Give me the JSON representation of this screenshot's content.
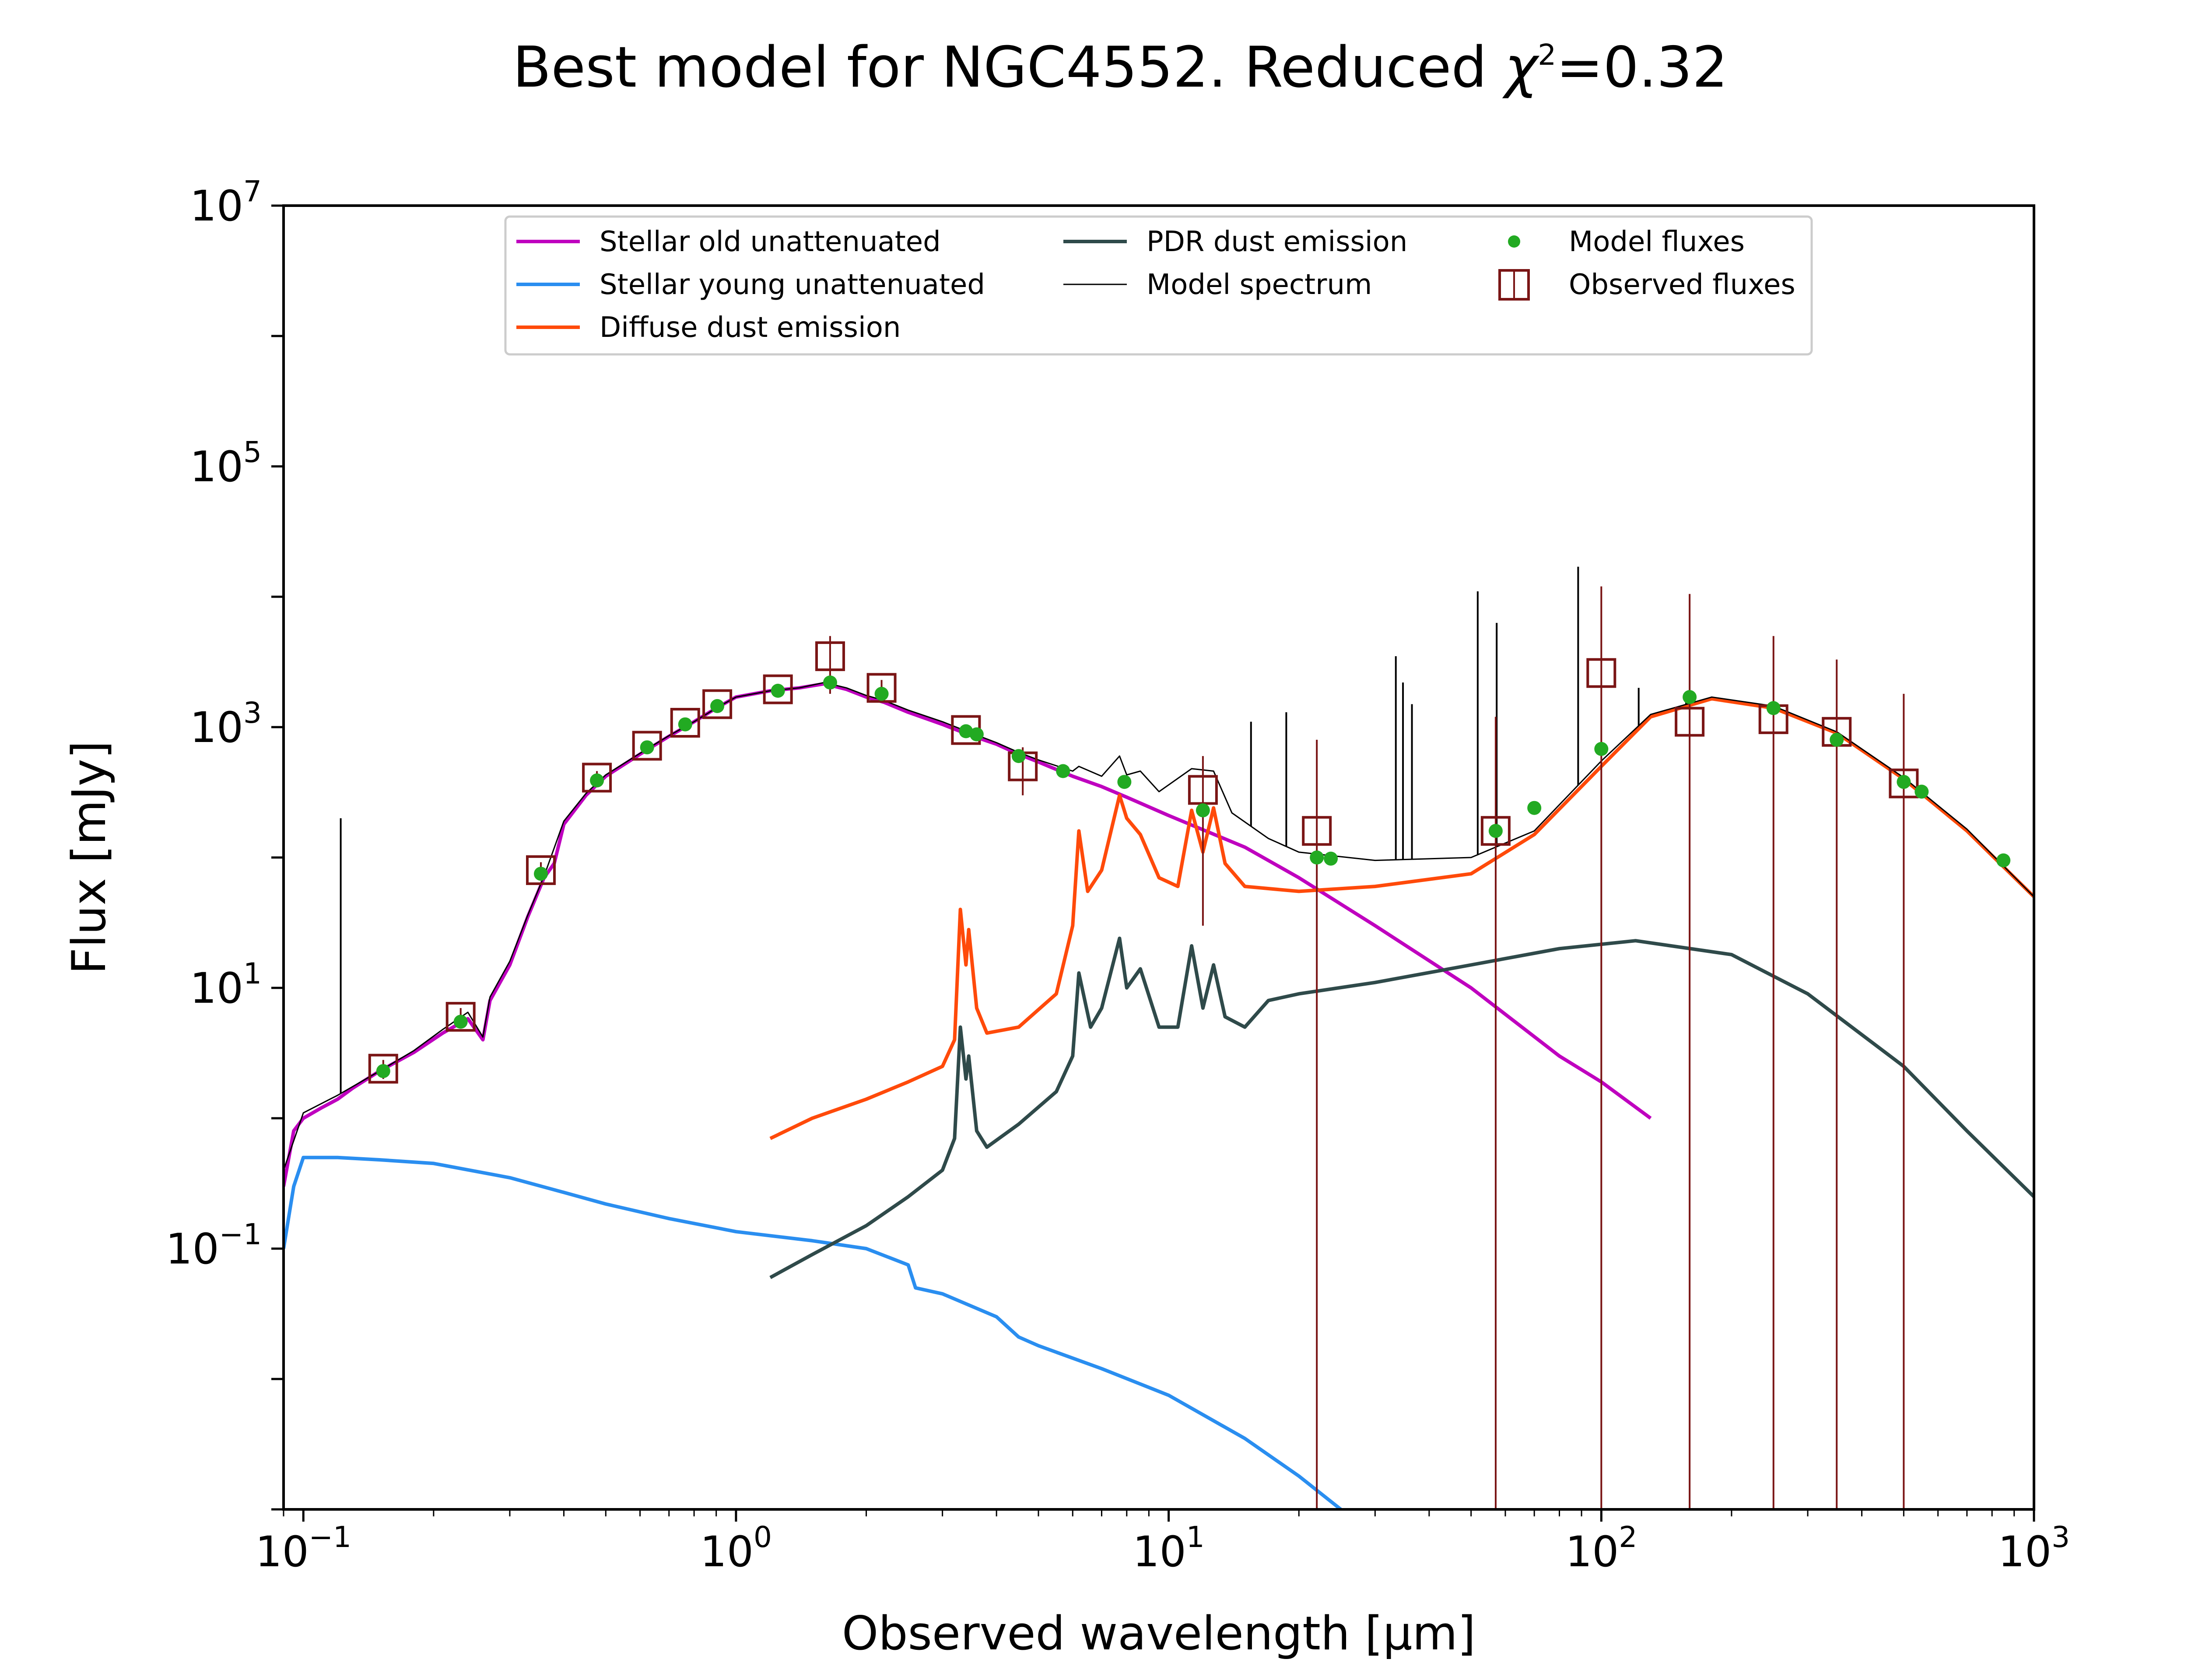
{
  "chart_data": {
    "type": "line",
    "title_prefix": "Best model for NGC4552. Reduced ",
    "title_chi": "χ",
    "title_sup": "2",
    "title_suffix": "=0.32",
    "xlabel": "Observed wavelength [μm]",
    "ylabel": "Flux [mJy]",
    "xscale": "log",
    "yscale": "log",
    "xlim": [
      0.09,
      1000
    ],
    "ylim": [
      0.001,
      10000000
    ],
    "legend_position": "top",
    "x_ticks": [
      {
        "value": 0.1,
        "base": "10",
        "exp": "−1"
      },
      {
        "value": 1,
        "base": "10",
        "exp": "0"
      },
      {
        "value": 10,
        "base": "10",
        "exp": "1"
      },
      {
        "value": 100,
        "base": "10",
        "exp": "2"
      },
      {
        "value": 1000,
        "base": "10",
        "exp": "3"
      }
    ],
    "y_ticks": [
      {
        "value": 0.1,
        "base": "10",
        "exp": "−1"
      },
      {
        "value": 10,
        "base": "10",
        "exp": "1"
      },
      {
        "value": 1000,
        "base": "10",
        "exp": "3"
      },
      {
        "value": 100000,
        "base": "10",
        "exp": "5"
      },
      {
        "value": 10000000,
        "base": "10",
        "exp": "7"
      }
    ],
    "series": [
      {
        "name": "Stellar old unattenuated",
        "color": "#bf00bf",
        "points": [
          [
            0.09,
            0.3
          ],
          [
            0.095,
            0.8
          ],
          [
            0.1,
            1.0
          ],
          [
            0.11,
            1.2
          ],
          [
            0.12,
            1.4
          ],
          [
            0.13,
            1.7
          ],
          [
            0.15,
            2.3
          ],
          [
            0.18,
            3.2
          ],
          [
            0.21,
            4.5
          ],
          [
            0.24,
            5.8
          ],
          [
            0.26,
            4.0
          ],
          [
            0.27,
            8.0
          ],
          [
            0.3,
            15
          ],
          [
            0.33,
            35
          ],
          [
            0.36,
            70
          ],
          [
            0.38,
            90
          ],
          [
            0.4,
            180
          ],
          [
            0.45,
            300
          ],
          [
            0.5,
            420
          ],
          [
            0.6,
            620
          ],
          [
            0.7,
            850
          ],
          [
            0.8,
            1100
          ],
          [
            0.9,
            1400
          ],
          [
            1.0,
            1700
          ],
          [
            1.2,
            1900
          ],
          [
            1.4,
            2000
          ],
          [
            1.6,
            2150
          ],
          [
            1.8,
            1950
          ],
          [
            2.0,
            1700
          ],
          [
            2.2,
            1550
          ],
          [
            2.5,
            1300
          ],
          [
            3.0,
            1050
          ],
          [
            3.5,
            860
          ],
          [
            4.0,
            740
          ],
          [
            4.5,
            620
          ],
          [
            5.0,
            540
          ],
          [
            6.0,
            420
          ],
          [
            7.0,
            350
          ],
          [
            8.0,
            290
          ],
          [
            10,
            210
          ],
          [
            15,
            120
          ],
          [
            20,
            70
          ],
          [
            30,
            30
          ],
          [
            50,
            10
          ],
          [
            80,
            3.0
          ],
          [
            100,
            1.9
          ],
          [
            130,
            1.0
          ]
        ]
      },
      {
        "name": "Stellar young unattenuated",
        "color": "#2a8ef0",
        "points": [
          [
            0.09,
            0.1
          ],
          [
            0.095,
            0.3
          ],
          [
            0.1,
            0.5
          ],
          [
            0.12,
            0.5
          ],
          [
            0.15,
            0.48
          ],
          [
            0.2,
            0.45
          ],
          [
            0.3,
            0.35
          ],
          [
            0.4,
            0.27
          ],
          [
            0.5,
            0.22
          ],
          [
            0.7,
            0.17
          ],
          [
            1.0,
            0.135
          ],
          [
            1.5,
            0.115
          ],
          [
            2.0,
            0.1
          ],
          [
            2.5,
            0.075
          ],
          [
            2.6,
            0.05
          ],
          [
            3.0,
            0.045
          ],
          [
            4.0,
            0.03
          ],
          [
            4.5,
            0.021
          ],
          [
            5.0,
            0.018
          ],
          [
            7.0,
            0.012
          ],
          [
            10,
            0.0075
          ],
          [
            15,
            0.0035
          ],
          [
            20,
            0.0018
          ],
          [
            25,
            0.001
          ]
        ]
      },
      {
        "name": "Diffuse dust emission",
        "color": "#ff4a0a",
        "points": [
          [
            1.2,
            0.7
          ],
          [
            1.5,
            1.0
          ],
          [
            2.0,
            1.4
          ],
          [
            2.5,
            1.9
          ],
          [
            3.0,
            2.5
          ],
          [
            3.2,
            4
          ],
          [
            3.3,
            40
          ],
          [
            3.4,
            15
          ],
          [
            3.45,
            28
          ],
          [
            3.6,
            7
          ],
          [
            3.8,
            4.5
          ],
          [
            4.5,
            5
          ],
          [
            5.5,
            9
          ],
          [
            6.0,
            30
          ],
          [
            6.2,
            160
          ],
          [
            6.5,
            55
          ],
          [
            7.0,
            80
          ],
          [
            7.7,
            300
          ],
          [
            8.0,
            200
          ],
          [
            8.6,
            150
          ],
          [
            9.5,
            70
          ],
          [
            10.5,
            60
          ],
          [
            11.3,
            230
          ],
          [
            12.0,
            110
          ],
          [
            12.7,
            240
          ],
          [
            13.5,
            90
          ],
          [
            15,
            60
          ],
          [
            20,
            55
          ],
          [
            30,
            60
          ],
          [
            50,
            75
          ],
          [
            70,
            150
          ],
          [
            100,
            500
          ],
          [
            130,
            1200
          ],
          [
            180,
            1650
          ],
          [
            250,
            1400
          ],
          [
            350,
            900
          ],
          [
            500,
            400
          ],
          [
            700,
            160
          ],
          [
            1000,
            50
          ]
        ]
      },
      {
        "name": "PDR dust emission",
        "color": "#2f4a4a",
        "points": [
          [
            1.2,
            0.06
          ],
          [
            1.5,
            0.09
          ],
          [
            2.0,
            0.15
          ],
          [
            2.5,
            0.25
          ],
          [
            3.0,
            0.4
          ],
          [
            3.2,
            0.7
          ],
          [
            3.3,
            5
          ],
          [
            3.4,
            2
          ],
          [
            3.45,
            3
          ],
          [
            3.6,
            0.8
          ],
          [
            3.8,
            0.6
          ],
          [
            4.5,
            0.9
          ],
          [
            5.5,
            1.6
          ],
          [
            6.0,
            3
          ],
          [
            6.2,
            13
          ],
          [
            6.6,
            5
          ],
          [
            7.0,
            7
          ],
          [
            7.7,
            24
          ],
          [
            8.0,
            10
          ],
          [
            8.6,
            14
          ],
          [
            9.5,
            5
          ],
          [
            10.5,
            5
          ],
          [
            11.3,
            21
          ],
          [
            12.0,
            7
          ],
          [
            12.7,
            15
          ],
          [
            13.5,
            6
          ],
          [
            15,
            5
          ],
          [
            17,
            8
          ],
          [
            20,
            9
          ],
          [
            30,
            11
          ],
          [
            50,
            15
          ],
          [
            80,
            20
          ],
          [
            120,
            23
          ],
          [
            200,
            18
          ],
          [
            300,
            9
          ],
          [
            500,
            2.5
          ],
          [
            700,
            0.8
          ],
          [
            1000,
            0.25
          ]
        ]
      },
      {
        "name": "Model spectrum",
        "color": "#000000",
        "points": [
          [
            0.09,
            0.4
          ],
          [
            0.1,
            1.1
          ],
          [
            0.12,
            1.5
          ],
          [
            0.15,
            2.3
          ],
          [
            0.18,
            3.3
          ],
          [
            0.21,
            4.8
          ],
          [
            0.24,
            6.5
          ],
          [
            0.26,
            4.2
          ],
          [
            0.27,
            8.5
          ],
          [
            0.3,
            16
          ],
          [
            0.33,
            36
          ],
          [
            0.36,
            72
          ],
          [
            0.4,
            190
          ],
          [
            0.45,
            310
          ],
          [
            0.5,
            430
          ],
          [
            0.6,
            630
          ],
          [
            0.7,
            860
          ],
          [
            0.8,
            1100
          ],
          [
            0.9,
            1400
          ],
          [
            1.0,
            1700
          ],
          [
            1.2,
            1900
          ],
          [
            1.4,
            2000
          ],
          [
            1.6,
            2200
          ],
          [
            1.8,
            2000
          ],
          [
            2.0,
            1750
          ],
          [
            2.2,
            1600
          ],
          [
            2.5,
            1350
          ],
          [
            3.0,
            1100
          ],
          [
            3.5,
            900
          ],
          [
            4.0,
            760
          ],
          [
            4.5,
            640
          ],
          [
            5.0,
            560
          ],
          [
            6.0,
            460
          ],
          [
            6.2,
            500
          ],
          [
            7.0,
            420
          ],
          [
            7.7,
            600
          ],
          [
            8.0,
            430
          ],
          [
            8.6,
            460
          ],
          [
            9.5,
            320
          ],
          [
            11.3,
            480
          ],
          [
            12.7,
            460
          ],
          [
            14,
            220
          ],
          [
            17,
            140
          ],
          [
            20,
            110
          ],
          [
            30,
            95
          ],
          [
            50,
            100
          ],
          [
            70,
            160
          ],
          [
            100,
            550
          ],
          [
            130,
            1250
          ],
          [
            180,
            1700
          ],
          [
            250,
            1450
          ],
          [
            350,
            920
          ],
          [
            500,
            410
          ],
          [
            700,
            165
          ],
          [
            1000,
            50
          ]
        ]
      }
    ],
    "emission_lines": [
      [
        0.122,
        200
      ],
      [
        15.5,
        1100
      ],
      [
        18.7,
        1300
      ],
      [
        33.5,
        3500
      ],
      [
        34.8,
        2200
      ],
      [
        36.5,
        1500
      ],
      [
        51.8,
        11000
      ],
      [
        57.3,
        6300
      ],
      [
        88.4,
        17000
      ],
      [
        122,
        2000
      ],
      [
        157,
        1700
      ],
      [
        205,
        1600
      ]
    ],
    "model_fluxes": {
      "name": "Model fluxes",
      "color": "#22aa22",
      "points": [
        [
          0.153,
          2.3
        ],
        [
          0.231,
          5.5
        ],
        [
          0.354,
          75
        ],
        [
          0.477,
          390
        ],
        [
          0.623,
          700
        ],
        [
          0.763,
          1050
        ],
        [
          0.905,
          1450
        ],
        [
          1.25,
          1900
        ],
        [
          1.65,
          2200
        ],
        [
          2.17,
          1800
        ],
        [
          3.4,
          930
        ],
        [
          3.6,
          880
        ],
        [
          4.5,
          600
        ],
        [
          5.7,
          460
        ],
        [
          7.9,
          380
        ],
        [
          12,
          230
        ],
        [
          22,
          100
        ],
        [
          23.7,
          98
        ],
        [
          57,
          160
        ],
        [
          70,
          240
        ],
        [
          100,
          680
        ],
        [
          160,
          1700
        ],
        [
          250,
          1400
        ],
        [
          350,
          800
        ],
        [
          500,
          380
        ],
        [
          550,
          320
        ],
        [
          850,
          95
        ]
      ]
    },
    "observed_fluxes": {
      "name": "Observed fluxes",
      "color": "#7a1515",
      "points": [
        {
          "x": 0.153,
          "y": 2.4,
          "err_lo": 2.0,
          "err_hi": 2.8
        },
        {
          "x": 0.231,
          "y": 6.0,
          "err_lo": 5.0,
          "err_hi": 7.0
        },
        {
          "x": 0.354,
          "y": 80,
          "err_lo": 68,
          "err_hi": 92
        },
        {
          "x": 0.477,
          "y": 410,
          "err_lo": 360,
          "err_hi": 460
        },
        {
          "x": 0.623,
          "y": 720,
          "err_lo": 650,
          "err_hi": 790
        },
        {
          "x": 0.763,
          "y": 1080,
          "err_lo": 980,
          "err_hi": 1180
        },
        {
          "x": 0.905,
          "y": 1500,
          "err_lo": 1360,
          "err_hi": 1640
        },
        {
          "x": 1.25,
          "y": 1950,
          "err_lo": 1750,
          "err_hi": 2150
        },
        {
          "x": 1.65,
          "y": 3500,
          "err_lo": 1800,
          "err_hi": 5000
        },
        {
          "x": 2.17,
          "y": 2000,
          "err_lo": 1700,
          "err_hi": 2300
        },
        {
          "x": 3.4,
          "y": 950,
          "err_lo": 850,
          "err_hi": 1050
        },
        {
          "x": 4.6,
          "y": 500,
          "err_lo": 300,
          "err_hi": 700
        },
        {
          "x": 12,
          "y": 330,
          "err_lo": 30,
          "err_hi": 600
        },
        {
          "x": 22,
          "y": 160,
          "err_lo": 0.001,
          "err_hi": 800
        },
        {
          "x": 57,
          "y": 160,
          "err_lo": 0.001,
          "err_hi": 1200
        },
        {
          "x": 100,
          "y": 2600,
          "err_lo": 0.001,
          "err_hi": 12000
        },
        {
          "x": 160,
          "y": 1100,
          "err_lo": 0.001,
          "err_hi": 10500
        },
        {
          "x": 250,
          "y": 1150,
          "err_lo": 0.001,
          "err_hi": 5000
        },
        {
          "x": 350,
          "y": 920,
          "err_lo": 0.001,
          "err_hi": 3300
        },
        {
          "x": 500,
          "y": 370,
          "err_lo": 0.001,
          "err_hi": 1800
        }
      ]
    }
  }
}
